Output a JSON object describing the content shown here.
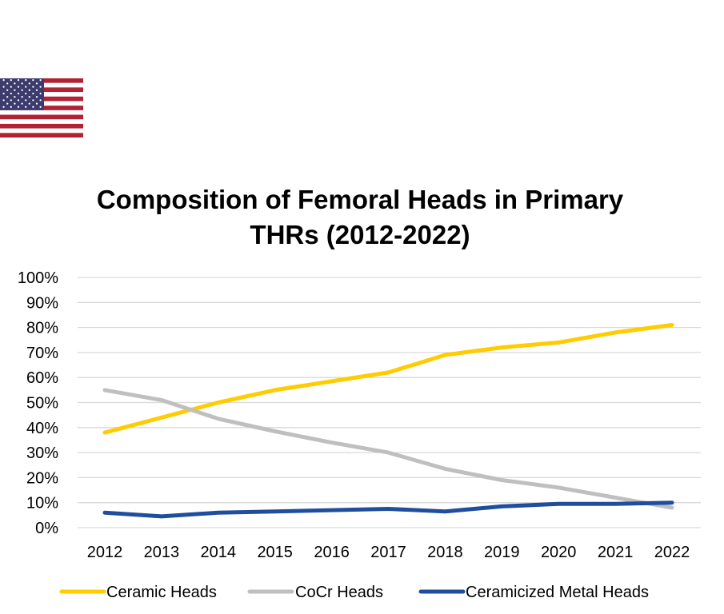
{
  "flag": {
    "icon": "us-flag-icon"
  },
  "chart_data": {
    "type": "line",
    "title_line1": "Composition of Femoral Heads in Primary",
    "title_line2": "THRs (2012-2022)",
    "xlabel": "",
    "ylabel": "",
    "x": [
      "2012",
      "2013",
      "2014",
      "2015",
      "2016",
      "2017",
      "2018",
      "2019",
      "2020",
      "2021",
      "2022"
    ],
    "y_ticks": [
      "0%",
      "10%",
      "20%",
      "30%",
      "40%",
      "50%",
      "60%",
      "70%",
      "80%",
      "90%",
      "100%"
    ],
    "ylim": [
      0,
      100
    ],
    "grid": true,
    "legend_position": "bottom",
    "series": [
      {
        "name": "Ceramic Heads",
        "color": "#FFCC00",
        "values": [
          38,
          44,
          50,
          55,
          58.5,
          62,
          69,
          72,
          74,
          78,
          81
        ]
      },
      {
        "name": "CoCr Heads",
        "color": "#BFBFBF",
        "values": [
          55,
          51,
          43.5,
          38.5,
          34,
          30,
          23.5,
          19,
          16,
          12,
          8
        ]
      },
      {
        "name": "Ceramicized Metal Heads",
        "color": "#1F4E9E",
        "values": [
          6,
          4.5,
          6,
          6.5,
          7,
          7.5,
          6.5,
          8.5,
          9.5,
          9.5,
          10
        ]
      }
    ]
  }
}
